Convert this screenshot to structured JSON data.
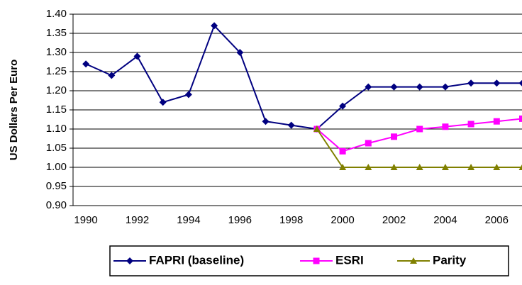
{
  "chart_data": {
    "type": "line",
    "y_label": "US Dollars Per Euro",
    "categories": [
      "1990",
      null,
      "1992",
      null,
      "1994",
      null,
      "1996",
      null,
      "1998",
      null,
      "2000",
      null,
      "2002",
      null,
      "2004",
      null,
      "2006",
      null
    ],
    "series": [
      {
        "name": "FAPRI (baseline)",
        "color": "#000080",
        "marker": "diamond",
        "values": [
          1.27,
          1.24,
          1.29,
          1.17,
          1.19,
          1.37,
          1.3,
          1.12,
          1.11,
          1.1,
          1.16,
          1.21,
          1.21,
          1.21,
          1.21,
          1.22,
          1.22,
          1.22
        ]
      },
      {
        "name": "ESRI",
        "color": "#ff00ff",
        "marker": "square",
        "values": [
          null,
          null,
          null,
          null,
          null,
          null,
          null,
          null,
          null,
          1.1,
          1.042,
          1.063,
          1.08,
          1.1,
          1.106,
          1.113,
          1.12,
          1.127
        ]
      },
      {
        "name": "Parity",
        "color": "#808000",
        "marker": "triangle",
        "values": [
          null,
          null,
          null,
          null,
          null,
          null,
          null,
          null,
          null,
          1.1,
          1.0,
          1.0,
          1.0,
          1.0,
          1.0,
          1.0,
          1.0,
          1.0
        ]
      }
    ],
    "ylim": [
      0.9,
      1.4
    ],
    "yticks": [
      {
        "value": 0.9,
        "label": "0.90"
      },
      0.95,
      {
        "value": 1.0,
        "label": "1.00"
      },
      1.05,
      {
        "value": 1.1,
        "label": "1.10"
      },
      1.15,
      {
        "value": 1.2,
        "label": "1.20"
      },
      1.25,
      {
        "value": 1.3,
        "label": "1.30"
      },
      1.35,
      {
        "value": 1.4,
        "label": "1.40"
      }
    ],
    "grid": true,
    "legend": "bottom"
  }
}
